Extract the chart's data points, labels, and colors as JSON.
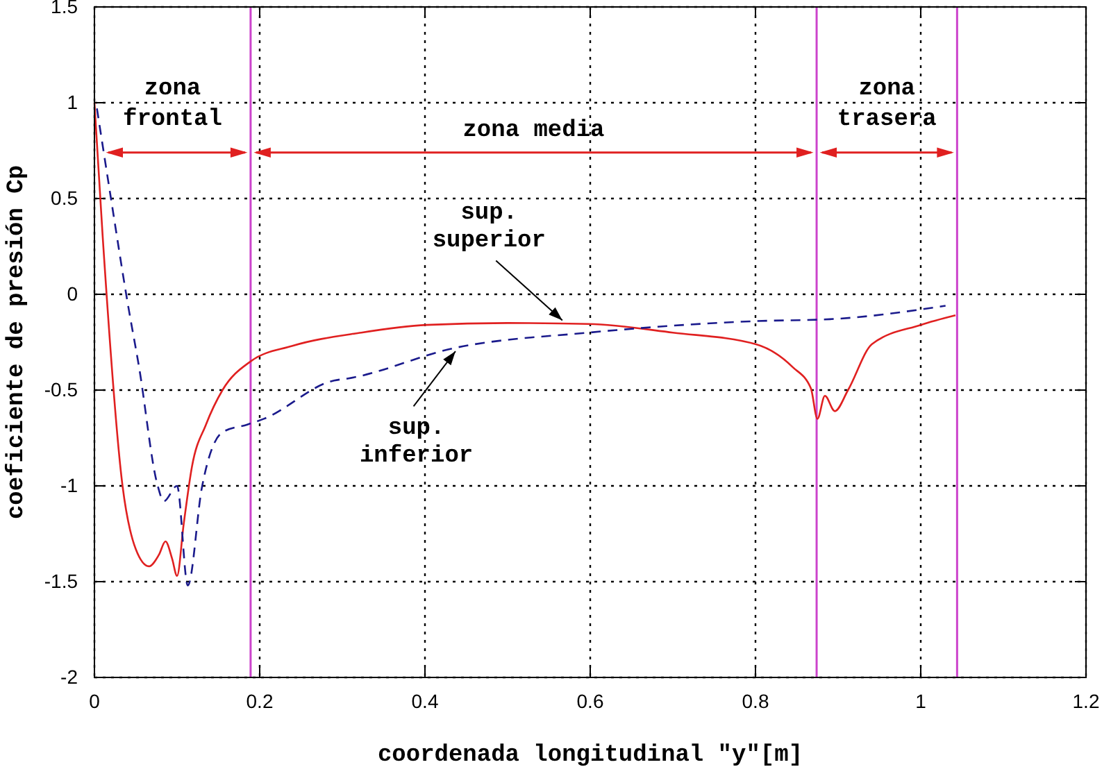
{
  "chart_data": {
    "type": "line",
    "xlabel": "coordenada longitudinal \"y\"[m]",
    "ylabel": "coeficiente de presión Cp",
    "xlim": [
      0,
      1.2
    ],
    "xticks": [
      0,
      0.2,
      0.4,
      0.6,
      0.8,
      1,
      1.2
    ],
    "ylim": [
      -2,
      1.5
    ],
    "yticks": [
      -2,
      -1.5,
      -1,
      -0.5,
      0,
      0.5,
      1,
      1.5
    ],
    "grid": true,
    "series": [
      {
        "color": "#e02020",
        "line_style": "solid",
        "x": [
          0,
          0.01,
          0.034,
          0.05,
          0.066,
          0.078,
          0.086,
          0.094,
          0.1,
          0.108,
          0.118,
          0.135,
          0.155,
          0.189,
          0.239,
          0.323,
          0.402,
          0.5,
          0.598,
          0.7,
          0.8,
          0.845,
          0.867,
          0.875,
          0.884,
          0.896,
          0.912,
          0.941,
          1.0,
          1.042
        ],
        "values": [
          1,
          0.3,
          -1,
          -1.33,
          -1.42,
          -1.36,
          -1.29,
          -1.38,
          -1.47,
          -1.2,
          -0.9,
          -0.68,
          -0.5,
          -0.35,
          -0.27,
          -0.2,
          -0.16,
          -0.15,
          -0.155,
          -0.2,
          -0.26,
          -0.38,
          -0.49,
          -0.65,
          -0.53,
          -0.61,
          -0.5,
          -0.26,
          -0.16,
          -0.11
        ]
      },
      {
        "color": "#1a1a8c",
        "line_style": "dashed",
        "x": [
          0.003,
          0.02,
          0.04,
          0.054,
          0.076,
          0.084,
          0.1,
          0.113,
          0.13,
          0.155,
          0.185,
          0.205,
          0.29,
          0.306,
          0.436,
          0.598,
          0.8,
          0.89,
          1.03
        ],
        "values": [
          0.97,
          0.5,
          -0.04,
          -0.38,
          -0.99,
          -1.08,
          -1.0,
          -1.52,
          -1.01,
          -0.72,
          -0.68,
          -0.65,
          -0.45,
          -0.44,
          -0.28,
          -0.2,
          -0.14,
          -0.13,
          -0.06
        ]
      }
    ],
    "ref_lines": [
      {
        "axis": "x",
        "value": 0.189,
        "color": "#cc44cc"
      },
      {
        "axis": "x",
        "value": 0.874,
        "color": "#cc44cc"
      },
      {
        "axis": "x",
        "value": 1.044,
        "color": "#cc44cc"
      }
    ],
    "annotations": [
      "zona frontal",
      "zona media",
      "zona trasera",
      {
        "text": "sup. superior",
        "x": 0.57,
        "y": -0.15
      },
      {
        "text": "sup. inferior",
        "x": 0.44,
        "y": -0.28
      }
    ]
  }
}
